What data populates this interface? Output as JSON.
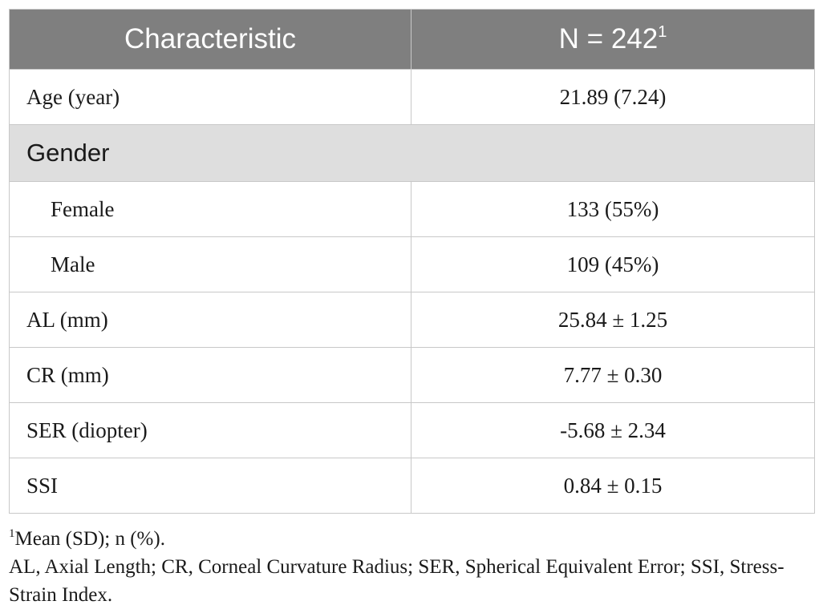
{
  "table": {
    "header": {
      "characteristic": "Characteristic",
      "n_label": "N = 242",
      "n_footnote_mark": "1"
    },
    "rows": [
      {
        "label": "Age (year)",
        "value": "21.89 (7.24)"
      },
      {
        "group": "Gender"
      },
      {
        "label": "Female",
        "value": "133 (55%)"
      },
      {
        "label": "Male",
        "value": "109 (45%)"
      },
      {
        "label": "AL (mm)",
        "value": "25.84 ± 1.25"
      },
      {
        "label": "CR (mm)",
        "value": "7.77 ± 0.30"
      },
      {
        "label": "SER (diopter)",
        "value": "-5.68 ± 2.34"
      },
      {
        "label": "SSI",
        "value": "0.84 ± 0.15"
      }
    ]
  },
  "footnotes": {
    "mark": "1",
    "note1": "Mean (SD); n (%).",
    "note2": "AL, Axial Length; CR, Corneal Curvature Radius; SER, Spherical Equivalent Error; SSI, Stress-",
    "note2_cont": "Strain Index."
  }
}
